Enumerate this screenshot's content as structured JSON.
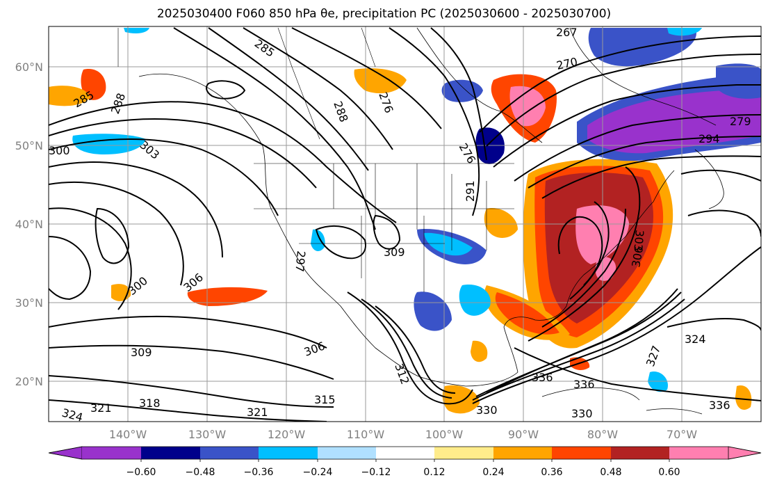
{
  "title": "2025030400 F060 850 hPa θe, precipitation PC (2025030600 - 2025030700)",
  "map": {
    "lat_labels": [
      "60°N",
      "50°N",
      "40°N",
      "30°N",
      "20°N"
    ],
    "lon_labels": [
      "140°W",
      "130°W",
      "120°W",
      "110°W",
      "100°W",
      "90°W",
      "80°W",
      "70°W"
    ],
    "contour_labels": [
      "267",
      "270",
      "276",
      "285",
      "288",
      "285",
      "288",
      "279",
      "294",
      "303",
      "300",
      "297",
      "309",
      "306",
      "300",
      "309",
      "306",
      "303",
      "306",
      "321",
      "318",
      "321",
      "324",
      "315",
      "312",
      "330",
      "336",
      "336",
      "327",
      "324",
      "336",
      "330",
      "276",
      "291"
    ]
  },
  "colorbar": {
    "tick_labels": [
      "−0.60",
      "−0.48",
      "−0.36",
      "−0.24",
      "−0.12",
      "0.12",
      "0.24",
      "0.36",
      "0.48",
      "0.60"
    ],
    "colors": [
      "#9932cc",
      "#00008b",
      "#3a53c8",
      "#00bfff",
      "#b0e0ff",
      "#ffffff",
      "#ffec8b",
      "#ffa500",
      "#ff4500",
      "#b22222",
      "#ff7fb0"
    ]
  }
}
